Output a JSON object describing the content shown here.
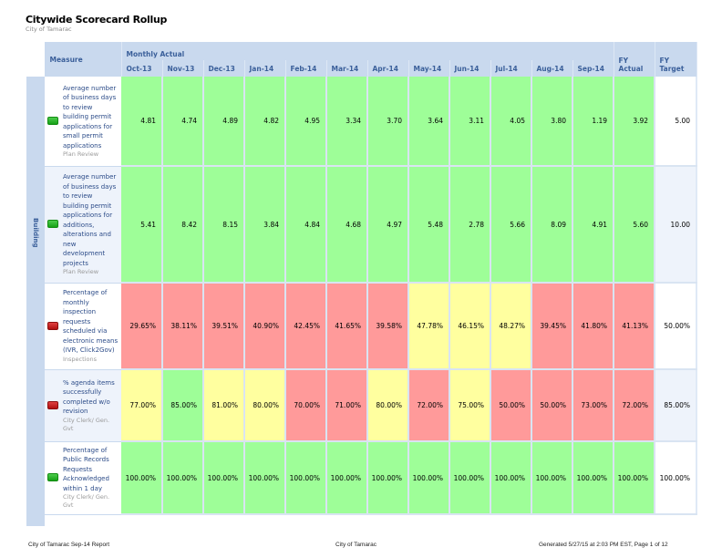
{
  "header": {
    "title": "Citywide Scorecard Rollup",
    "subtitle": "City of Tamarac"
  },
  "table": {
    "measure_header": "Measure",
    "group_header": "Monthly Actual",
    "months": [
      "Oct-13",
      "Nov-13",
      "Dec-13",
      "Jan-14",
      "Feb-14",
      "Mar-14",
      "Apr-14",
      "May-14",
      "Jun-14",
      "Jul-14",
      "Aug-14",
      "Sep-14"
    ],
    "fy_actual_header": [
      "FY",
      "Actual"
    ],
    "fy_target_header": [
      "FY",
      "Target"
    ],
    "category": "Building",
    "colors": {
      "green": "#9efe98",
      "red": "#ff9a9a",
      "yellow": "#ffff9f",
      "header_bg": "#c9d9ee",
      "header_text": "#3a5f9a"
    },
    "rows": [
      {
        "status": "green",
        "measure": "Average number of business days to review building permit applications for small permit applications",
        "department": "Plan Review",
        "values": [
          "4.81",
          "4.74",
          "4.89",
          "4.82",
          "4.95",
          "3.34",
          "3.70",
          "3.64",
          "3.11",
          "4.05",
          "3.80",
          "1.19"
        ],
        "colors": [
          "g",
          "g",
          "g",
          "g",
          "g",
          "g",
          "g",
          "g",
          "g",
          "g",
          "g",
          "g"
        ],
        "fy_actual": "3.92",
        "fy_actual_color": "g",
        "fy_target": "5.00"
      },
      {
        "status": "green",
        "measure": "Average number of business days to review building permit applications for additions, alterations and new development projects",
        "department": "Plan Review",
        "values": [
          "5.41",
          "8.42",
          "8.15",
          "3.84",
          "4.84",
          "4.68",
          "4.97",
          "5.48",
          "2.78",
          "5.66",
          "8.09",
          "4.91"
        ],
        "colors": [
          "g",
          "g",
          "g",
          "g",
          "g",
          "g",
          "g",
          "g",
          "g",
          "g",
          "g",
          "g"
        ],
        "fy_actual": "5.60",
        "fy_actual_color": "g",
        "fy_target": "10.00"
      },
      {
        "status": "red",
        "measure": "Percentage of monthly inspection requests scheduled via electronic means (IVR, Click2Gov)",
        "department": "Inspections",
        "values": [
          "29.65%",
          "38.11%",
          "39.51%",
          "40.90%",
          "42.45%",
          "41.65%",
          "39.58%",
          "47.78%",
          "46.15%",
          "48.27%",
          "39.45%",
          "41.80%"
        ],
        "colors": [
          "r",
          "r",
          "r",
          "r",
          "r",
          "r",
          "r",
          "y",
          "y",
          "y",
          "r",
          "r"
        ],
        "fy_actual": "41.13%",
        "fy_actual_color": "r",
        "fy_target": "50.00%"
      },
      {
        "status": "red",
        "measure": "% agenda items successfully completed w/o revision",
        "department": "City Clerk/ Gen. Gvt",
        "values": [
          "77.00%",
          "85.00%",
          "81.00%",
          "80.00%",
          "70.00%",
          "71.00%",
          "80.00%",
          "72.00%",
          "75.00%",
          "50.00%",
          "50.00%",
          "73.00%"
        ],
        "colors": [
          "y",
          "g",
          "y",
          "y",
          "r",
          "r",
          "y",
          "r",
          "y",
          "r",
          "r",
          "r"
        ],
        "fy_actual": "72.00%",
        "fy_actual_color": "r",
        "fy_target": "85.00%"
      },
      {
        "status": "green",
        "measure": "Percentage of Public Records Requests Acknowledged within 1 day",
        "department": "City Clerk/ Gen. Gvt",
        "values": [
          "100.00%",
          "100.00%",
          "100.00%",
          "100.00%",
          "100.00%",
          "100.00%",
          "100.00%",
          "100.00%",
          "100.00%",
          "100.00%",
          "100.00%",
          "100.00%"
        ],
        "colors": [
          "g",
          "g",
          "g",
          "g",
          "g",
          "g",
          "g",
          "g",
          "g",
          "g",
          "g",
          "g"
        ],
        "fy_actual": "100.00%",
        "fy_actual_color": "g",
        "fy_target": "100.00%"
      }
    ]
  },
  "footer": {
    "left": "City of Tamarac Sep-14 Report",
    "center": "City of Tamarac",
    "right": "Generated 5/27/15 at 2:03 PM EST, Page 1 of 12"
  }
}
